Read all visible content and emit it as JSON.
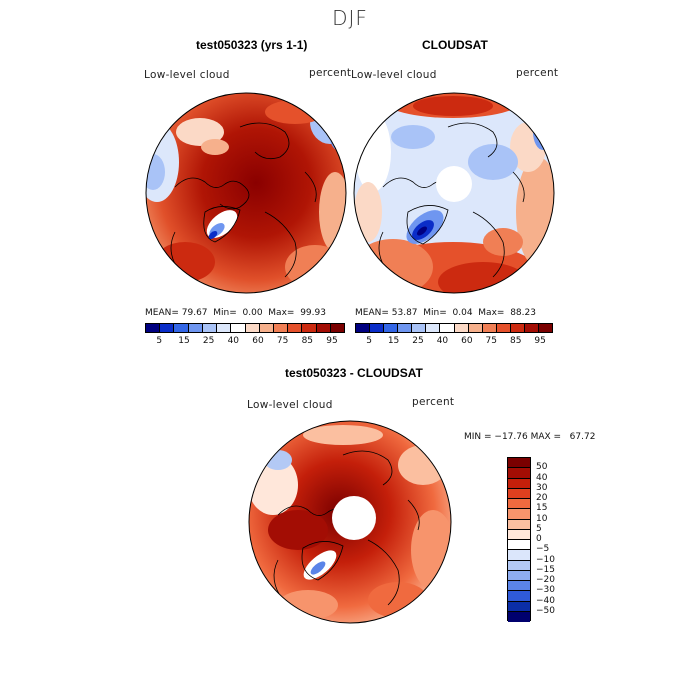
{
  "page": {
    "season": "DJF"
  },
  "colors": {
    "model_palette": [
      "#000080",
      "#0a2dc8",
      "#3366e6",
      "#6f96f0",
      "#a9c3f7",
      "#dce7fb",
      "#ffffff",
      "#fbd9c6",
      "#f6b08c",
      "#f07f55",
      "#e5512b",
      "#cc2a10",
      "#a30d04",
      "#7a0000"
    ],
    "diff_palette": [
      "#7a0000",
      "#a30d04",
      "#c41f0a",
      "#e0401f",
      "#f06a3f",
      "#f7946c",
      "#fbbfa0",
      "#ffe7da",
      "#ffffff",
      "#dbe6fb",
      "#b3c9f5",
      "#8eacf0",
      "#5b84e8",
      "#2f5ad8",
      "#0b2ea8",
      "#00006e"
    ]
  },
  "chart_data": [
    {
      "type": "heatmap",
      "title": "test050323 (yrs 1-1)",
      "left_label": "Low-level cloud",
      "right_label": "percent",
      "stats": {
        "mean": "79.67",
        "min": "0.00",
        "max": "99.93"
      },
      "colorbar_ticks": [
        "5",
        "15",
        "25",
        "40",
        "60",
        "75",
        "85",
        "95"
      ],
      "projection": "polar stereographic (north)"
    },
    {
      "type": "heatmap",
      "title": "CLOUDSAT",
      "left_label": "Low-level cloud",
      "right_label": "percent",
      "stats": {
        "mean": "53.87",
        "min": "0.04",
        "max": "88.23"
      },
      "colorbar_ticks": [
        "5",
        "15",
        "25",
        "40",
        "60",
        "75",
        "85",
        "95"
      ],
      "projection": "polar stereographic (north)"
    },
    {
      "type": "heatmap",
      "title": "test050323 - CLOUDSAT",
      "left_label": "Low-level cloud",
      "right_label": "percent",
      "stats": {
        "min": "-17.76",
        "max": "67.72"
      },
      "colorbar_ticks": [
        "50",
        "40",
        "30",
        "20",
        "15",
        "10",
        "5",
        "0",
        "−5",
        "−10",
        "−15",
        "−20",
        "−30",
        "−40",
        "−50"
      ],
      "projection": "polar stereographic (north)"
    }
  ],
  "labels": {
    "mean_prefix": "MEAN=",
    "min_prefix": "Min=",
    "max_prefix": "Max=",
    "diff_stats_text": "MIN = −17.76 MAX =   67.72"
  }
}
